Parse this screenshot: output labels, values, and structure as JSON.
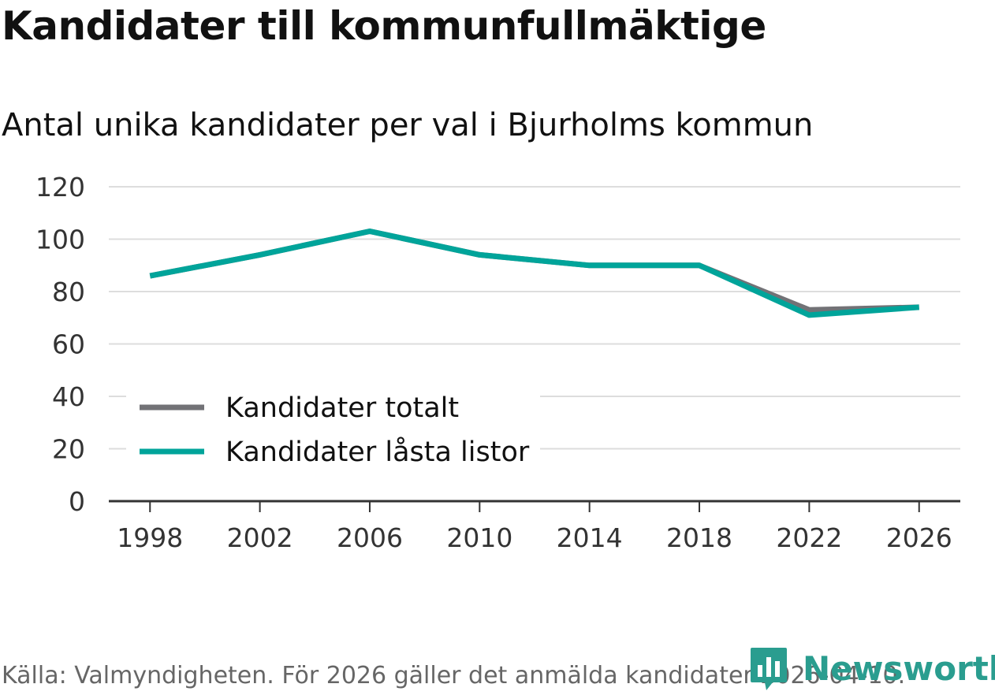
{
  "title": "Kandidater till kommunfullmäktige",
  "subtitle": "Antal unika kandidater per val i Bjurholms kommun",
  "source": "Källa: Valmyndigheten. För 2026 gäller det anmälda kandidater 2026-04-10.",
  "brand": "Newsworthy",
  "colors": {
    "total": "#727276",
    "locked": "#00a49a",
    "grid": "#dddddd",
    "axis": "#333333",
    "brand": "#2a9d8f"
  },
  "chart_data": {
    "type": "line",
    "title": "Kandidater till kommunfullmäktige",
    "subtitle": "Antal unika kandidater per val i Bjurholms kommun",
    "xlabel": "",
    "ylabel": "",
    "x": [
      1998,
      2002,
      2006,
      2010,
      2014,
      2018,
      2022,
      2026
    ],
    "x_tick_labels": [
      "1998",
      "2002",
      "2006",
      "2010",
      "2014",
      "2018",
      "2022",
      "2026"
    ],
    "y_ticks": [
      0,
      20,
      40,
      60,
      80,
      100,
      120
    ],
    "y_tick_labels": [
      "0",
      "20",
      "40",
      "60",
      "80",
      "100",
      "120"
    ],
    "ylim": [
      0,
      120
    ],
    "xlim": [
      1996.5,
      2027.5
    ],
    "grid": true,
    "legend_position": "bottom-left",
    "series": [
      {
        "name": "Kandidater totalt",
        "color": "#727276",
        "values": [
          86,
          94,
          103,
          94,
          90,
          90,
          73,
          74
        ]
      },
      {
        "name": "Kandidater låsta listor",
        "color": "#00a49a",
        "values": [
          86,
          94,
          103,
          94,
          90,
          90,
          71,
          74
        ]
      }
    ]
  }
}
